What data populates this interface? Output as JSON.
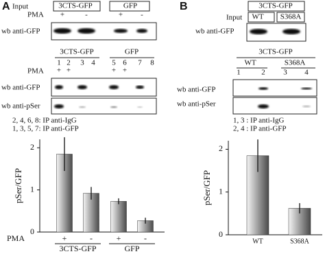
{
  "panel_a": {
    "label": "A",
    "input_blot": {
      "row_title": "Input",
      "groups": [
        "3CTS-GFP",
        "GFP"
      ],
      "pma_label": "PMA",
      "pma": [
        "+",
        "-",
        "+",
        "-"
      ],
      "wb_label": "wb anti-GFP"
    },
    "ip_blot": {
      "groups": [
        "3CTS-GFP",
        "GFP"
      ],
      "lanes": [
        "1",
        "2",
        "3",
        "4",
        "5",
        "6",
        "7",
        "8"
      ],
      "pma_label": "PMA",
      "pma": [
        "+",
        "+",
        null,
        null,
        "+",
        "+",
        null,
        null
      ],
      "wb_labels": [
        "wb anti-GFP",
        "wb anti-pSer"
      ],
      "legend": [
        "2, 4, 6, 8: IP anti-IgG",
        "1, 3, 5, 7: IP anti-GFP"
      ]
    },
    "chart": {
      "type": "bar",
      "ylabel": "pSer/GFP",
      "ylim": [
        0,
        2.2
      ],
      "yticks": [
        0,
        1,
        2
      ],
      "category_title": "PMA",
      "categories": [
        "+",
        "-",
        "+",
        "-"
      ],
      "groups": [
        "3CTS-GFP",
        "GFP"
      ],
      "values": [
        1.85,
        0.92,
        0.73,
        0.27
      ],
      "errors": [
        0.4,
        0.15,
        0.07,
        0.07
      ],
      "gradient": [
        "#f4f4f4",
        "#4a4a4a"
      ]
    }
  },
  "panel_b": {
    "label": "B",
    "input_blot": {
      "group": "3CTS-GFP",
      "row_title": "Input",
      "lanes": [
        "WT",
        "S368A"
      ],
      "wb_label": "wb anti-GFP"
    },
    "ip_blot": {
      "group": "3CTS-GFP",
      "variants": [
        "WT",
        "S368A"
      ],
      "lanes": [
        "1",
        "2",
        "3",
        "4"
      ],
      "wb_labels": [
        "wb anti-GFP",
        "wb anti-pSer"
      ],
      "legend": [
        "1, 3 : IP anti-IgG",
        "2, 4 : IP anti-GFP"
      ]
    },
    "chart": {
      "type": "bar",
      "ylabel": "pSer/GFP",
      "ylim": [
        0,
        2.2
      ],
      "yticks": [
        0,
        1,
        2
      ],
      "categories": [
        "WT",
        "S368A"
      ],
      "values": [
        1.85,
        0.62
      ],
      "errors": [
        0.38,
        0.12
      ],
      "gradient": [
        "#f4f4f4",
        "#4a4a4a"
      ]
    }
  }
}
